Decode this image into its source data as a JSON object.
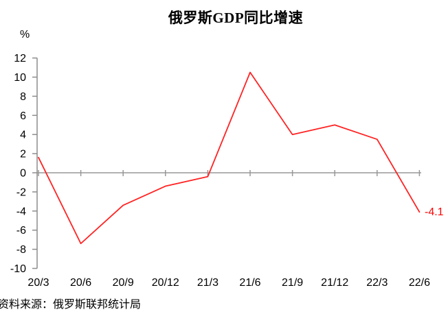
{
  "page": {
    "background": "#ffffff"
  },
  "chart_data": {
    "type": "line",
    "title": "俄罗斯GDP同比增速",
    "unit_label": "%",
    "source_note": "资料来源：俄罗斯联邦统计局",
    "categories": [
      "20/3",
      "20/6",
      "20/9",
      "20/12",
      "21/3",
      "21/6",
      "21/9",
      "21/12",
      "22/3",
      "22/6"
    ],
    "values": [
      1.6,
      -7.4,
      -3.4,
      -1.4,
      -0.4,
      10.5,
      4.0,
      5.0,
      3.5,
      -4.1
    ],
    "ylim": [
      -10,
      12
    ],
    "ytick_step": 2,
    "grid": false,
    "legend": "none",
    "annotations": [
      {
        "text": "-4.1",
        "category": "22/6",
        "value": -4.1,
        "color": "#ff0000"
      }
    ],
    "colors": {
      "line": "#ff2222",
      "axis": "#8c8c8c",
      "zero_line": "#979797",
      "text": "#000000"
    }
  }
}
